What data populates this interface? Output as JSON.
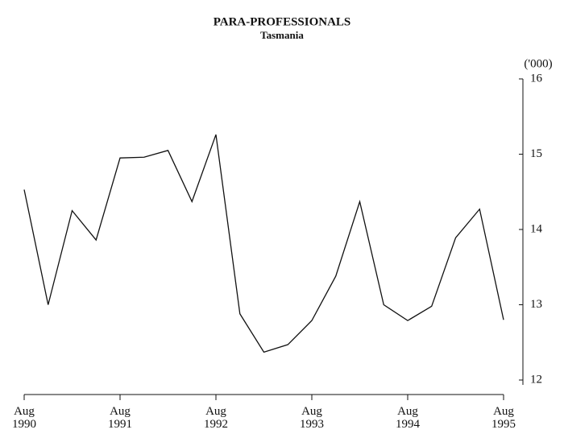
{
  "chart_data": {
    "type": "line",
    "title": "PARA-PROFESSIONALS",
    "subtitle": "Tasmania",
    "y_label": "('000)",
    "categories": [
      "Aug 1990",
      null,
      null,
      null,
      "Aug 1991",
      null,
      null,
      null,
      "Aug 1992",
      null,
      null,
      null,
      "Aug 1993",
      null,
      null,
      null,
      "Aug 1994",
      null,
      null,
      null,
      "Aug 1995"
    ],
    "values": [
      14.53,
      13.0,
      14.25,
      13.86,
      14.95,
      14.96,
      15.05,
      14.37,
      15.26,
      12.88,
      12.37,
      12.47,
      12.79,
      13.38,
      14.37,
      13.0,
      12.79,
      12.98,
      13.89,
      14.27,
      12.8
    ],
    "color": "#111111",
    "ylim": [
      12,
      16
    ],
    "yticks": [
      12,
      13,
      14,
      15,
      16
    ]
  }
}
